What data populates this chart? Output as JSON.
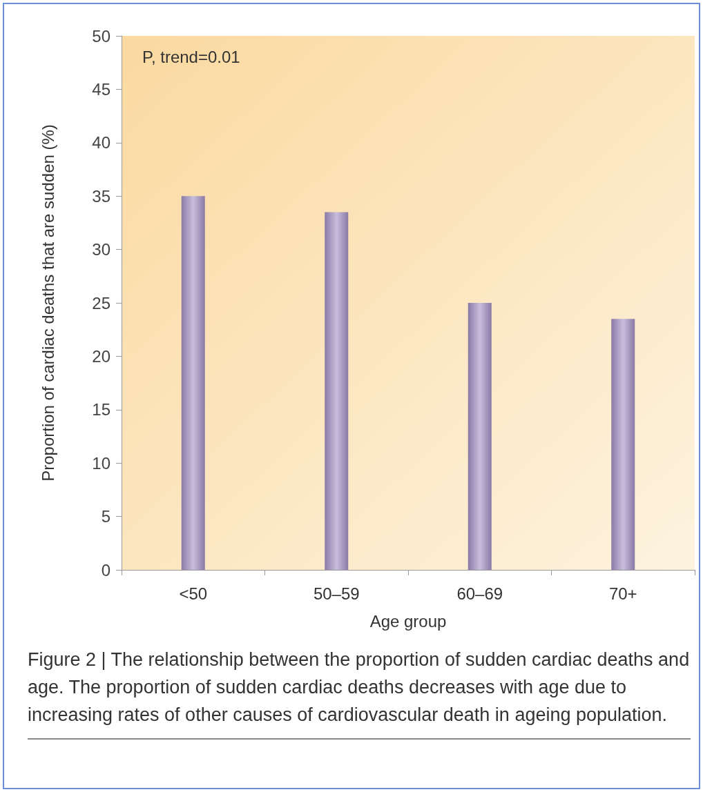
{
  "chart_data": {
    "type": "bar",
    "xlabel": "Age group",
    "ylabel": "Proportion of cardiac deaths that are sudden (%)",
    "categories": [
      "<50",
      "50–59",
      "60–69",
      "70+"
    ],
    "values": [
      35,
      33.5,
      25,
      23.5
    ],
    "color": "#8a7aa6",
    "ylim": [
      0,
      50
    ],
    "yticks": [
      0,
      5,
      10,
      15,
      20,
      25,
      30,
      35,
      40,
      45,
      50
    ],
    "grid": false,
    "annotations": [
      "P, trend=0.01",
      "Figure 2 | The relationship between the proportion of sudden cardiac deaths and age. The proportion of sudden cardiac deaths decreases with age due to increasing rates of other causes of cardiovascular death in ageing population."
    ]
  }
}
